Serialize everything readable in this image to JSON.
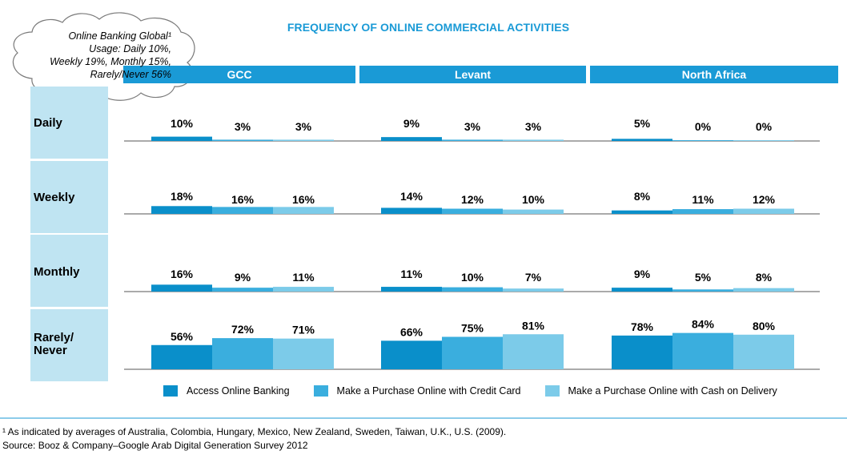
{
  "title": "FREQUENCY OF ONLINE COMMERCIAL ACTIVITIES",
  "callout": {
    "lines": [
      "Online Banking Global¹",
      "Usage: Daily 10%,",
      "Weekly 19%, Monthly 15%,",
      "Rarely/Never 56%"
    ]
  },
  "footnote": {
    "note": "¹ As indicated by averages of Australia, Colombia, Hungary, Mexico, New Zealand, Sweden, Taiwan, U.K., U.S. (2009).",
    "source": "Source: Booz & Company–Google Arab Digital Generation Survey 2012"
  },
  "colors": {
    "header": "#1a9ad6",
    "row_label_bg": "#bfe4f2",
    "series": [
      "#0a8fca",
      "#3aaede",
      "#7ccbe9"
    ],
    "axis": "#555555",
    "cloud_stroke": "#7a7a7a"
  },
  "chart_data": {
    "type": "bar",
    "title": "FREQUENCY OF ONLINE COMMERCIAL ACTIVITIES",
    "regions": [
      "GCC",
      "Levant",
      "North Africa"
    ],
    "frequencies": [
      "Daily",
      "Weekly",
      "Monthly",
      "Rarely/ Never"
    ],
    "series": [
      {
        "name": "Access Online Banking",
        "values": {
          "GCC": [
            10,
            18,
            16,
            56
          ],
          "Levant": [
            9,
            14,
            11,
            66
          ],
          "North Africa": [
            5,
            8,
            9,
            78
          ]
        }
      },
      {
        "name": "Make a Purchase Online with Credit Card",
        "values": {
          "GCC": [
            3,
            16,
            9,
            72
          ],
          "Levant": [
            3,
            12,
            10,
            75
          ],
          "North Africa": [
            0,
            11,
            5,
            84
          ]
        }
      },
      {
        "name": "Make a Purchase Online with Cash on Delivery",
        "values": {
          "GCC": [
            3,
            16,
            11,
            71
          ],
          "Levant": [
            3,
            10,
            7,
            81
          ],
          "North Africa": [
            0,
            12,
            8,
            80
          ]
        }
      }
    ],
    "value_suffix": "%",
    "legend_position": "bottom",
    "grid": false
  }
}
